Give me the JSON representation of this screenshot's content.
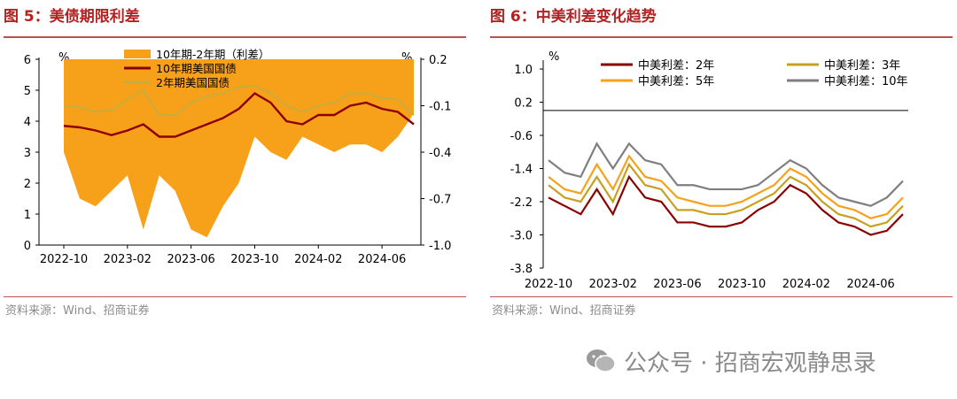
{
  "left": {
    "title": "图 5：美债期限利差",
    "source": "资料来源：Wind、招商证券",
    "chart_data": {
      "type": "area",
      "x_dates": [
        "2022-10",
        "2022-11",
        "2022-12",
        "2023-01",
        "2023-02",
        "2023-03",
        "2023-04",
        "2023-05",
        "2023-06",
        "2023-07",
        "2023-08",
        "2023-09",
        "2023-10",
        "2023-11",
        "2023-12",
        "2024-01",
        "2024-02",
        "2024-03",
        "2024-04",
        "2024-05",
        "2024-06",
        "2024-07",
        "2024-08"
      ],
      "x_tick_labels": [
        "2022-10",
        "2023-02",
        "2023-06",
        "2023-10",
        "2024-02",
        "2024-06"
      ],
      "y_left": {
        "unit": "%",
        "ticks": [
          "0",
          "1",
          "2",
          "3",
          "4",
          "5",
          "6"
        ],
        "lim": [
          0,
          6
        ]
      },
      "y_right": {
        "unit": "%",
        "ticks": [
          "0.2",
          "-0.1",
          "-0.4",
          "-0.7",
          "-1.0"
        ],
        "lim": [
          -1.0,
          0.2
        ]
      },
      "series": [
        {
          "name": "10年期-2年期（利差）",
          "axis": "right",
          "color": "#f7a11a",
          "values": [
            -0.4,
            -0.7,
            -0.75,
            -0.65,
            -0.55,
            -0.9,
            -0.55,
            -0.65,
            -0.9,
            -0.95,
            -0.75,
            -0.6,
            -0.3,
            -0.4,
            -0.45,
            -0.3,
            -0.35,
            -0.4,
            -0.35,
            -0.35,
            -0.4,
            -0.3,
            -0.15
          ]
        },
        {
          "name": "10年期美国国债",
          "axis": "left",
          "color": "#8b0000",
          "values": [
            3.85,
            3.8,
            3.7,
            3.55,
            3.7,
            3.9,
            3.5,
            3.5,
            3.7,
            3.9,
            4.1,
            4.4,
            4.9,
            4.6,
            4.0,
            3.9,
            4.2,
            4.2,
            4.5,
            4.6,
            4.4,
            4.3,
            3.9
          ]
        },
        {
          "name": "2年期美国国债",
          "axis": "left",
          "color": "#c8ad3c",
          "values": [
            4.5,
            4.45,
            4.3,
            4.35,
            4.7,
            5.0,
            4.2,
            4.2,
            4.6,
            4.8,
            4.9,
            5.1,
            5.15,
            4.9,
            4.5,
            4.3,
            4.5,
            4.6,
            4.9,
            4.9,
            4.75,
            4.7,
            4.2
          ]
        }
      ]
    }
  },
  "right": {
    "title": "图 6：中美利差变化趋势",
    "source": "资料来源：Wind、招商证券",
    "chart_data": {
      "type": "line",
      "x_dates": [
        "2022-10",
        "2022-11",
        "2022-12",
        "2023-01",
        "2023-02",
        "2023-03",
        "2023-04",
        "2023-05",
        "2023-06",
        "2023-07",
        "2023-08",
        "2023-09",
        "2023-10",
        "2023-11",
        "2023-12",
        "2024-01",
        "2024-02",
        "2024-03",
        "2024-04",
        "2024-05",
        "2024-06",
        "2024-07",
        "2024-08"
      ],
      "x_tick_labels": [
        "2022-10",
        "2023-02",
        "2023-06",
        "2023-10",
        "2024-02",
        "2024-06"
      ],
      "y": {
        "unit": "%",
        "ticks": [
          "1.0",
          "0.2",
          "-0.6",
          "-1.4",
          "-2.2",
          "-3.0",
          "-3.8"
        ],
        "lim": [
          -3.8,
          1.0
        ]
      },
      "series": [
        {
          "name": "中美利差：2年",
          "color": "#8b0000",
          "values": [
            -2.1,
            -2.3,
            -2.5,
            -1.9,
            -2.5,
            -1.6,
            -2.1,
            -2.2,
            -2.7,
            -2.7,
            -2.8,
            -2.8,
            -2.7,
            -2.4,
            -2.2,
            -1.8,
            -2.0,
            -2.4,
            -2.7,
            -2.8,
            -3.0,
            -2.9,
            -2.5
          ]
        },
        {
          "name": "中美利差：3年",
          "color": "#c8a020",
          "values": [
            -1.8,
            -2.1,
            -2.2,
            -1.6,
            -2.2,
            -1.3,
            -1.8,
            -1.9,
            -2.4,
            -2.4,
            -2.5,
            -2.5,
            -2.4,
            -2.2,
            -2.0,
            -1.6,
            -1.8,
            -2.2,
            -2.5,
            -2.6,
            -2.8,
            -2.7,
            -2.3
          ]
        },
        {
          "name": "中美利差：5年",
          "color": "#f7a11a",
          "values": [
            -1.6,
            -1.9,
            -2.0,
            -1.3,
            -1.9,
            -1.1,
            -1.6,
            -1.7,
            -2.1,
            -2.2,
            -2.3,
            -2.3,
            -2.2,
            -2.0,
            -1.8,
            -1.4,
            -1.6,
            -2.0,
            -2.3,
            -2.4,
            -2.6,
            -2.5,
            -2.1
          ]
        },
        {
          "name": "中美利差：10年",
          "color": "#7f7f7f",
          "values": [
            -1.2,
            -1.5,
            -1.6,
            -0.8,
            -1.4,
            -0.8,
            -1.2,
            -1.3,
            -1.8,
            -1.8,
            -1.9,
            -1.9,
            -1.9,
            -1.8,
            -1.5,
            -1.2,
            -1.4,
            -1.8,
            -2.1,
            -2.2,
            -2.3,
            -2.1,
            -1.7
          ]
        }
      ]
    }
  },
  "watermark": {
    "text": "公众号 · 招商宏观静思录",
    "icon": "wechat-icon"
  }
}
